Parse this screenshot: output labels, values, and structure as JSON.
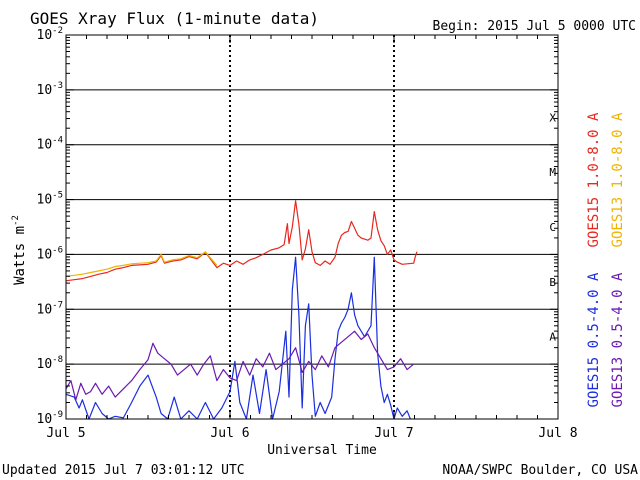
{
  "chart_data": {
    "type": "line",
    "title": "GOES Xray Flux (1-minute data)",
    "begin_label": "Begin:  2015 Jul 5 0000 UTC",
    "ylabel_main": "Watts m",
    "ylabel_sup": "-2",
    "xlabel": "Universal Time",
    "y_scale": "log",
    "ylim": [
      1e-09,
      0.01
    ],
    "xlim_days": [
      0,
      3
    ],
    "y_ticks": [
      {
        "exp": -2,
        "base": "10",
        "sup": "-2"
      },
      {
        "exp": -3,
        "base": "10",
        "sup": "-3"
      },
      {
        "exp": -4,
        "base": "10",
        "sup": "-4"
      },
      {
        "exp": -5,
        "base": "10",
        "sup": "-5"
      },
      {
        "exp": -6,
        "base": "10",
        "sup": "-6"
      },
      {
        "exp": -7,
        "base": "10",
        "sup": "-7"
      },
      {
        "exp": -8,
        "base": "10",
        "sup": "-8"
      },
      {
        "exp": -9,
        "base": "10",
        "sup": "-9"
      }
    ],
    "x_ticks": [
      {
        "day": 0,
        "label": "Jul 5"
      },
      {
        "day": 1,
        "label": "Jul 6"
      },
      {
        "day": 2,
        "label": "Jul 7"
      },
      {
        "day": 3,
        "label": "Jul 8"
      }
    ],
    "flare_classes": [
      {
        "label": "X",
        "exp": -3.5
      },
      {
        "label": "M",
        "exp": -4.5
      },
      {
        "label": "C",
        "exp": -5.5
      },
      {
        "label": "B",
        "exp": -6.5
      },
      {
        "label": "A",
        "exp": -7.5
      }
    ],
    "series": [
      {
        "name": "GOES15 1.0-8.0 A",
        "color": "#e8281e",
        "points": [
          [
            0,
            -6.48
          ],
          [
            0.05,
            -6.46
          ],
          [
            0.1,
            -6.44
          ],
          [
            0.15,
            -6.4
          ],
          [
            0.2,
            -6.36
          ],
          [
            0.25,
            -6.33
          ],
          [
            0.3,
            -6.27
          ],
          [
            0.35,
            -6.24
          ],
          [
            0.4,
            -6.2
          ],
          [
            0.45,
            -6.19
          ],
          [
            0.5,
            -6.18
          ],
          [
            0.55,
            -6.14
          ],
          [
            0.58,
            -6.02
          ],
          [
            0.6,
            -6.16
          ],
          [
            0.65,
            -6.12
          ],
          [
            0.7,
            -6.1
          ],
          [
            0.75,
            -6.04
          ],
          [
            0.8,
            -6.08
          ],
          [
            0.85,
            -5.96
          ],
          [
            0.88,
            -6.08
          ],
          [
            0.92,
            -6.24
          ],
          [
            0.96,
            -6.16
          ],
          [
            1.0,
            -6.2
          ],
          [
            1.04,
            -6.12
          ],
          [
            1.08,
            -6.18
          ],
          [
            1.12,
            -6.1
          ],
          [
            1.16,
            -6.06
          ],
          [
            1.2,
            -6.0
          ],
          [
            1.25,
            -5.92
          ],
          [
            1.3,
            -5.88
          ],
          [
            1.33,
            -5.82
          ],
          [
            1.35,
            -5.44
          ],
          [
            1.36,
            -5.8
          ],
          [
            1.38,
            -5.5
          ],
          [
            1.4,
            -5.02
          ],
          [
            1.42,
            -5.45
          ],
          [
            1.44,
            -6.1
          ],
          [
            1.46,
            -5.9
          ],
          [
            1.48,
            -5.55
          ],
          [
            1.5,
            -5.95
          ],
          [
            1.52,
            -6.15
          ],
          [
            1.55,
            -6.2
          ],
          [
            1.58,
            -6.12
          ],
          [
            1.61,
            -6.18
          ],
          [
            1.64,
            -6.05
          ],
          [
            1.66,
            -5.8
          ],
          [
            1.68,
            -5.65
          ],
          [
            1.7,
            -5.6
          ],
          [
            1.72,
            -5.58
          ],
          [
            1.74,
            -5.4
          ],
          [
            1.76,
            -5.52
          ],
          [
            1.78,
            -5.65
          ],
          [
            1.8,
            -5.7
          ],
          [
            1.82,
            -5.72
          ],
          [
            1.84,
            -5.74
          ],
          [
            1.86,
            -5.7
          ],
          [
            1.88,
            -5.22
          ],
          [
            1.9,
            -5.55
          ],
          [
            1.92,
            -5.75
          ],
          [
            1.94,
            -5.84
          ],
          [
            1.96,
            -6.0
          ],
          [
            1.98,
            -5.92
          ],
          [
            2.0,
            -6.1
          ],
          [
            2.02,
            -6.14
          ],
          [
            2.05,
            -6.18
          ],
          [
            2.08,
            -6.17
          ],
          [
            2.12,
            -6.16
          ],
          [
            2.13,
            -6.04
          ],
          [
            2.14,
            -5.95
          ]
        ]
      },
      {
        "name": "GOES13 1.0-8.0 A",
        "color": "#f0b400",
        "points": [
          [
            0,
            -6.4
          ],
          [
            0.05,
            -6.38
          ],
          [
            0.1,
            -6.36
          ],
          [
            0.15,
            -6.33
          ],
          [
            0.2,
            -6.3
          ],
          [
            0.25,
            -6.27
          ],
          [
            0.3,
            -6.22
          ],
          [
            0.35,
            -6.2
          ],
          [
            0.4,
            -6.17
          ],
          [
            0.45,
            -6.16
          ],
          [
            0.5,
            -6.15
          ],
          [
            0.55,
            -6.12
          ],
          [
            0.58,
            -6.0
          ],
          [
            0.6,
            -6.14
          ],
          [
            0.65,
            -6.1
          ],
          [
            0.7,
            -6.08
          ],
          [
            0.75,
            -6.02
          ],
          [
            0.8,
            -6.06
          ],
          [
            0.85,
            -5.95
          ],
          [
            0.88,
            -6.06
          ],
          [
            0.92,
            -6.2
          ]
        ]
      },
      {
        "name": "GOES15 0.5-4.0 A",
        "color": "#1a2ee0",
        "points": [
          [
            0,
            -8.55
          ],
          [
            0.05,
            -8.6
          ],
          [
            0.08,
            -8.8
          ],
          [
            0.1,
            -8.65
          ],
          [
            0.14,
            -9.0
          ],
          [
            0.18,
            -8.7
          ],
          [
            0.22,
            -8.9
          ],
          [
            0.26,
            -9.0
          ],
          [
            0.3,
            -8.95
          ],
          [
            0.35,
            -8.98
          ],
          [
            0.4,
            -8.7
          ],
          [
            0.45,
            -8.4
          ],
          [
            0.5,
            -8.2
          ],
          [
            0.55,
            -8.6
          ],
          [
            0.58,
            -8.9
          ],
          [
            0.62,
            -9.0
          ],
          [
            0.66,
            -8.6
          ],
          [
            0.7,
            -9.0
          ],
          [
            0.75,
            -8.85
          ],
          [
            0.8,
            -9.0
          ],
          [
            0.85,
            -8.7
          ],
          [
            0.9,
            -9.0
          ],
          [
            0.95,
            -8.8
          ],
          [
            1.0,
            -8.5
          ],
          [
            1.03,
            -7.95
          ],
          [
            1.06,
            -8.7
          ],
          [
            1.1,
            -9.0
          ],
          [
            1.14,
            -8.2
          ],
          [
            1.18,
            -8.9
          ],
          [
            1.22,
            -8.1
          ],
          [
            1.26,
            -9.0
          ],
          [
            1.3,
            -8.5
          ],
          [
            1.34,
            -7.4
          ],
          [
            1.36,
            -8.6
          ],
          [
            1.38,
            -6.65
          ],
          [
            1.4,
            -6.05
          ],
          [
            1.42,
            -7.1
          ],
          [
            1.44,
            -8.8
          ],
          [
            1.46,
            -7.3
          ],
          [
            1.48,
            -6.9
          ],
          [
            1.5,
            -8.2
          ],
          [
            1.52,
            -8.95
          ],
          [
            1.55,
            -8.7
          ],
          [
            1.58,
            -8.9
          ],
          [
            1.62,
            -8.6
          ],
          [
            1.64,
            -7.9
          ],
          [
            1.66,
            -7.4
          ],
          [
            1.68,
            -7.25
          ],
          [
            1.7,
            -7.15
          ],
          [
            1.72,
            -7.0
          ],
          [
            1.74,
            -6.7
          ],
          [
            1.76,
            -7.1
          ],
          [
            1.78,
            -7.3
          ],
          [
            1.8,
            -7.4
          ],
          [
            1.82,
            -7.5
          ],
          [
            1.84,
            -7.4
          ],
          [
            1.86,
            -7.3
          ],
          [
            1.88,
            -6.05
          ],
          [
            1.9,
            -7.8
          ],
          [
            1.92,
            -8.4
          ],
          [
            1.94,
            -8.7
          ],
          [
            1.96,
            -8.55
          ],
          [
            1.98,
            -8.75
          ],
          [
            2.0,
            -9.0
          ],
          [
            2.02,
            -8.8
          ],
          [
            2.05,
            -8.95
          ],
          [
            2.08,
            -8.85
          ],
          [
            2.1,
            -9.0
          ]
        ]
      },
      {
        "name": "GOES13 0.5-4.0 A",
        "color": "#6a1ab0",
        "points": [
          [
            0,
            -8.45
          ],
          [
            0.03,
            -8.3
          ],
          [
            0.06,
            -8.65
          ],
          [
            0.09,
            -8.35
          ],
          [
            0.12,
            -8.55
          ],
          [
            0.15,
            -8.5
          ],
          [
            0.18,
            -8.35
          ],
          [
            0.22,
            -8.55
          ],
          [
            0.26,
            -8.4
          ],
          [
            0.3,
            -8.6
          ],
          [
            0.35,
            -8.45
          ],
          [
            0.4,
            -8.3
          ],
          [
            0.45,
            -8.1
          ],
          [
            0.5,
            -7.92
          ],
          [
            0.53,
            -7.62
          ],
          [
            0.56,
            -7.8
          ],
          [
            0.6,
            -7.9
          ],
          [
            0.64,
            -8.0
          ],
          [
            0.68,
            -8.2
          ],
          [
            0.72,
            -8.1
          ],
          [
            0.76,
            -8.0
          ],
          [
            0.8,
            -8.2
          ],
          [
            0.84,
            -8.0
          ],
          [
            0.88,
            -7.85
          ],
          [
            0.92,
            -8.3
          ],
          [
            0.96,
            -8.1
          ],
          [
            1.0,
            -8.25
          ],
          [
            1.04,
            -8.3
          ],
          [
            1.08,
            -7.95
          ],
          [
            1.12,
            -8.2
          ],
          [
            1.16,
            -7.9
          ],
          [
            1.2,
            -8.05
          ],
          [
            1.24,
            -7.8
          ],
          [
            1.28,
            -8.1
          ],
          [
            1.32,
            -8.0
          ],
          [
            1.36,
            -7.9
          ],
          [
            1.4,
            -7.7
          ],
          [
            1.44,
            -8.15
          ],
          [
            1.48,
            -7.95
          ],
          [
            1.52,
            -8.1
          ],
          [
            1.56,
            -7.85
          ],
          [
            1.6,
            -8.05
          ],
          [
            1.64,
            -7.7
          ],
          [
            1.68,
            -7.6
          ],
          [
            1.72,
            -7.5
          ],
          [
            1.76,
            -7.4
          ],
          [
            1.8,
            -7.55
          ],
          [
            1.84,
            -7.45
          ],
          [
            1.88,
            -7.7
          ],
          [
            1.92,
            -7.9
          ],
          [
            1.96,
            -8.1
          ],
          [
            2.0,
            -8.05
          ],
          [
            2.04,
            -7.9
          ],
          [
            2.08,
            -8.1
          ],
          [
            2.12,
            -8.0
          ]
        ]
      }
    ]
  },
  "footer": {
    "updated": "Updated 2015 Jul  7 03:01:12 UTC",
    "credit": "NOAA/SWPC Boulder, CO USA"
  }
}
